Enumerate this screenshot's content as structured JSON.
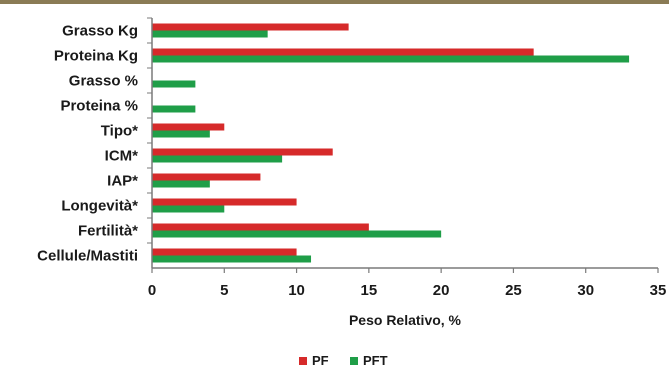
{
  "chart_data": {
    "type": "bar",
    "orientation": "horizontal",
    "categories": [
      "Grasso Kg",
      "Proteina Kg",
      "Grasso %",
      "Proteina %",
      "Tipo*",
      "ICM*",
      "IAP*",
      "Longevità*",
      "Fertilità*",
      "Cellule/Mastiti"
    ],
    "series": [
      {
        "name": "PF",
        "color": "#d62a2a",
        "values": [
          13.6,
          26.4,
          0,
          0,
          5,
          12.5,
          7.5,
          10,
          15,
          10
        ]
      },
      {
        "name": "PFT",
        "color": "#1f9e48",
        "values": [
          8,
          33,
          3,
          3,
          4,
          9,
          4,
          5,
          20,
          11
        ]
      }
    ],
    "xlabel": "Peso Relativo, %",
    "xlim": [
      0,
      35
    ],
    "xticks": [
      "0",
      "5",
      "10",
      "15",
      "20",
      "25",
      "30",
      "35"
    ],
    "grid": false,
    "legend": "bottom"
  }
}
